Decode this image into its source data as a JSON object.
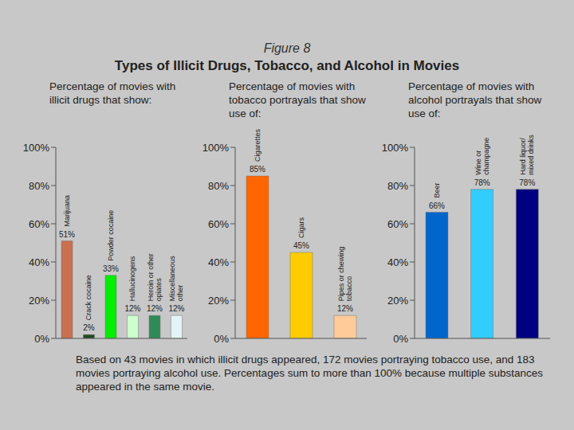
{
  "figure_label": "Figure 8",
  "title": "Types of Illicit Drugs, Tobacco, and Alcohol in Movies",
  "note": "Based on 43 movies in which illicit drugs appeared, 172 movies portraying tobacco use, and 183 movies portraying alcohol use.  Percentages sum to more than 100% because multiple substances appeared in the same movie.",
  "chart_data": [
    {
      "type": "bar",
      "title": "Percentage of movies with illicit drugs that show:",
      "categories": [
        "Marijuana",
        "Crack cocaine",
        "Powder cocaine",
        "Hallucinogens",
        "Heroin or other opiates",
        "Miscellaneous other"
      ],
      "values": [
        51,
        2,
        33,
        12,
        12,
        12
      ],
      "value_labels": [
        "51%",
        "2%",
        "33%",
        "12%",
        "12%",
        "12%"
      ],
      "colors": [
        "#c8704f",
        "#1f4a1f",
        "#00ee00",
        "#ccffcc",
        "#2e8b57",
        "#e4f4f4"
      ],
      "ylim": [
        0,
        100
      ],
      "yticks": [
        {
          "value": 0,
          "label": "0%"
        },
        {
          "value": 20,
          "label": "20%"
        },
        {
          "value": 40,
          "label": "40%"
        },
        {
          "value": 60,
          "label": "60%"
        },
        {
          "value": 80,
          "label": "80%"
        },
        {
          "value": 100,
          "label": "100%"
        }
      ],
      "grid": false,
      "data_labels": true,
      "tick_labels": "y"
    },
    {
      "type": "bar",
      "title": "Percentage of movies with tobacco portrayals that show use of:",
      "categories": [
        "Cigarettes",
        "Cigars",
        "Pipes or chewing tobacco"
      ],
      "values": [
        85,
        45,
        12
      ],
      "value_labels": [
        "85%",
        "45%",
        "12%"
      ],
      "colors": [
        "#ff6600",
        "#ffcc00",
        "#ffcc99"
      ],
      "ylim": [
        0,
        100
      ],
      "yticks": [
        {
          "value": 0,
          "label": "0%"
        },
        {
          "value": 20,
          "label": "20%"
        },
        {
          "value": 40,
          "label": "40%"
        },
        {
          "value": 60,
          "label": "60%"
        },
        {
          "value": 80,
          "label": "80%"
        },
        {
          "value": 100,
          "label": "100%"
        }
      ],
      "grid": false,
      "data_labels": true,
      "tick_labels": "y"
    },
    {
      "type": "bar",
      "title": "Percentage of movies with alcohol portrayals that show use of:",
      "categories": [
        "Beer",
        "Wine or champagne",
        "Hard liquor/ mixed drinks"
      ],
      "values": [
        66,
        78,
        78
      ],
      "value_labels": [
        "66%",
        "78%",
        "78%"
      ],
      "colors": [
        "#0066cc",
        "#33ccff",
        "#000080"
      ],
      "ylim": [
        0,
        100
      ],
      "yticks": [
        {
          "value": 0,
          "label": "0%"
        },
        {
          "value": 20,
          "label": "20%"
        },
        {
          "value": 40,
          "label": "40%"
        },
        {
          "value": 60,
          "label": "60%"
        },
        {
          "value": 80,
          "label": "80%"
        },
        {
          "value": 100,
          "label": "100%"
        }
      ],
      "grid": false,
      "data_labels": true,
      "tick_labels": "y"
    }
  ]
}
